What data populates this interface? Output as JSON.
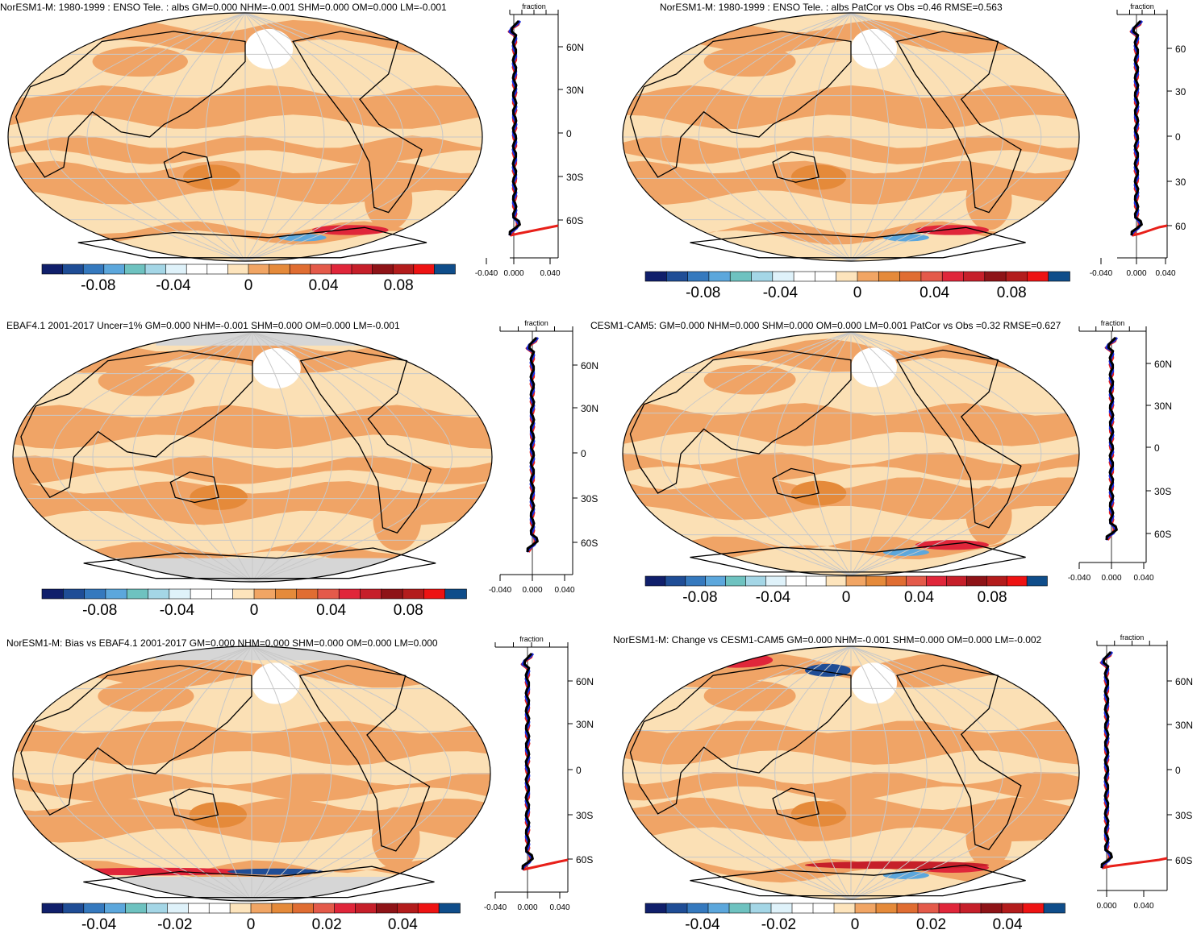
{
  "colors": {
    "land_outline": "#000000",
    "grid": "#c8c8c8",
    "missing": "#d6d6d6",
    "model_line": "#e8201a",
    "obs_line": "#1a2ee0",
    "mean_line": "#000000"
  },
  "colorbar_colors": [
    "#101f6b",
    "#1f4d96",
    "#3579be",
    "#5ca7dc",
    "#6ec2c0",
    "#a4d6e6",
    "#dff2fa",
    "#ffffff",
    "#ffffff",
    "#fde4bc",
    "#f1a564",
    "#e58a3a",
    "#e06d32",
    "#e45a4a",
    "#e0263a",
    "#c61f2a",
    "#8e1317",
    "#b31c1c",
    "#ee1313",
    "#0f4d8a"
  ],
  "panels": [
    {
      "id": "p1",
      "title": "NorESM1-M: 1980-1999 : ENSO Tele. : albs GM=0.000 NHM=-0.001 SHM=0.000 OM=0.000 LM=-0.001",
      "zonal_title": "fraction",
      "lat_labels": [
        "60N",
        "30N",
        "0",
        "30S",
        "60S"
      ],
      "zonal_ticks": [
        "-0.040",
        "0.000",
        "0.040"
      ],
      "colorbar_labels": [
        "-0.08",
        "-0.04",
        "0",
        "0.04",
        "0.08"
      ],
      "colorbar_values": [
        -0.08,
        -0.04,
        0,
        0.04,
        0.08
      ],
      "colorbar_range": [
        -0.11,
        0.11
      ]
    },
    {
      "id": "p2",
      "title": "NorESM1-M: 1980-1999 : ENSO Tele. : albs PatCor vs Obs =0.46 RMSE=0.563",
      "zonal_title": "fraction",
      "lat_labels": [
        "60",
        "30",
        "0",
        "30",
        "60"
      ],
      "zonal_ticks": [
        "-0.040",
        "0.000",
        "0.040"
      ],
      "colorbar_labels": [
        "-0.08",
        "-0.04",
        "0",
        "0.04",
        "0.08"
      ],
      "colorbar_values": [
        -0.08,
        -0.04,
        0,
        0.04,
        0.08
      ],
      "colorbar_range": [
        -0.11,
        0.11
      ]
    },
    {
      "id": "p3",
      "title": "EBAF4.1 2001-2017 Uncer=1% GM=0.000 NHM=-0.001 SHM=0.000 OM=0.000 LM=-0.001",
      "zonal_title": "fraction",
      "lat_labels": [
        "60N",
        "30N",
        "0",
        "30S",
        "60S"
      ],
      "zonal_ticks": [
        "-0.040",
        "0.000",
        "0.040"
      ],
      "colorbar_labels": [
        "-0.08",
        "-0.04",
        "0",
        "0.04",
        "0.08"
      ],
      "colorbar_values": [
        -0.08,
        -0.04,
        0,
        0.04,
        0.08
      ],
      "colorbar_range": [
        -0.11,
        0.11
      ]
    },
    {
      "id": "p4",
      "title": "CESM1-CAM5: GM=0.000 NHM=0.000 SHM=0.000 OM=0.000 LM=0.001 PatCor vs Obs =0.32 RMSE=0.627",
      "zonal_title": "fraction",
      "lat_labels": [
        "60N",
        "30N",
        "0",
        "30S",
        "60S"
      ],
      "zonal_ticks": [
        "-0.040",
        "0.000",
        "0.040"
      ],
      "colorbar_labels": [
        "-0.08",
        "-0.04",
        "0",
        "0.04",
        "0.08"
      ],
      "colorbar_values": [
        -0.08,
        -0.04,
        0,
        0.04,
        0.08
      ],
      "colorbar_range": [
        -0.11,
        0.11
      ]
    },
    {
      "id": "p5",
      "title": "NorESM1-M: Bias vs EBAF4.1 2001-2017 GM=0.000 NHM=0.000 SHM=0.000 OM=0.000 LM=0.000",
      "zonal_title": "fraction",
      "lat_labels": [
        "60N",
        "30N",
        "0",
        "30S",
        "60S"
      ],
      "zonal_ticks": [
        "-0.040",
        "0.000",
        "0.040"
      ],
      "colorbar_labels": [
        "-0.04",
        "-0.02",
        "0",
        "0.02",
        "0.04"
      ],
      "colorbar_values": [
        -0.04,
        -0.02,
        0,
        0.02,
        0.04
      ],
      "colorbar_range": [
        -0.055,
        0.055
      ]
    },
    {
      "id": "p6",
      "title": "NorESM1-M: Change vs CESM1-CAM5 GM=0.000 NHM=-0.001 SHM=0.000 OM=0.000 LM=-0.002",
      "zonal_title": "fraction",
      "lat_labels": [
        "60N",
        "30N",
        "0",
        "30S",
        "60S"
      ],
      "zonal_ticks": [
        "0.000",
        "0.040"
      ],
      "colorbar_labels": [
        "-0.04",
        "-0.02",
        "0",
        "0.02",
        "0.04"
      ],
      "colorbar_values": [
        -0.04,
        -0.02,
        0,
        0.02,
        0.04
      ],
      "colorbar_range": [
        -0.055,
        0.055
      ]
    }
  ]
}
